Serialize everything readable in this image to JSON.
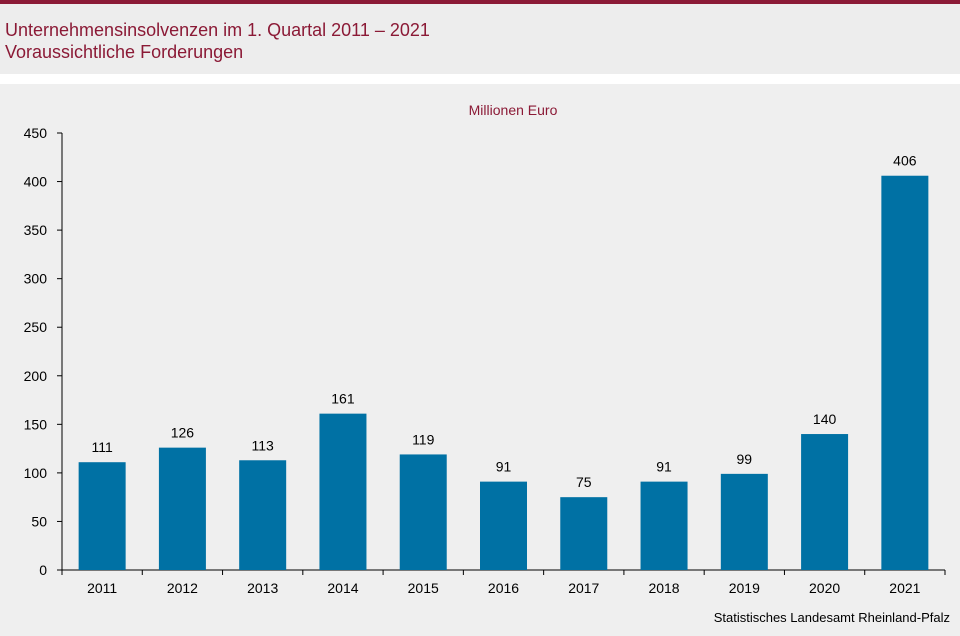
{
  "header": {
    "title_line1": "Unternehmensinsolvenzen im 1. Quartal 2011 – 2021",
    "title_line2": "Voraussichtliche Forderungen"
  },
  "colors": {
    "accent": "#8b1a36",
    "bar": "#0071a4",
    "background": "#efefef"
  },
  "chart_data": {
    "type": "bar",
    "title": "",
    "unit_label": "Millionen  Euro",
    "xlabel": "",
    "ylabel": "",
    "categories": [
      "2011",
      "2012",
      "2013",
      "2014",
      "2015",
      "2016",
      "2017",
      "2018",
      "2019",
      "2020",
      "2021"
    ],
    "values": [
      111,
      126,
      113,
      161,
      119,
      91,
      75,
      91,
      99,
      140,
      406
    ],
    "ylim": [
      0,
      450
    ],
    "yticks": [
      0,
      50,
      100,
      150,
      200,
      250,
      300,
      350,
      400,
      450
    ],
    "grid": false,
    "data_labels": true
  },
  "footer": {
    "source": "Statistisches Landesamt  Rheinland-Pfalz"
  }
}
